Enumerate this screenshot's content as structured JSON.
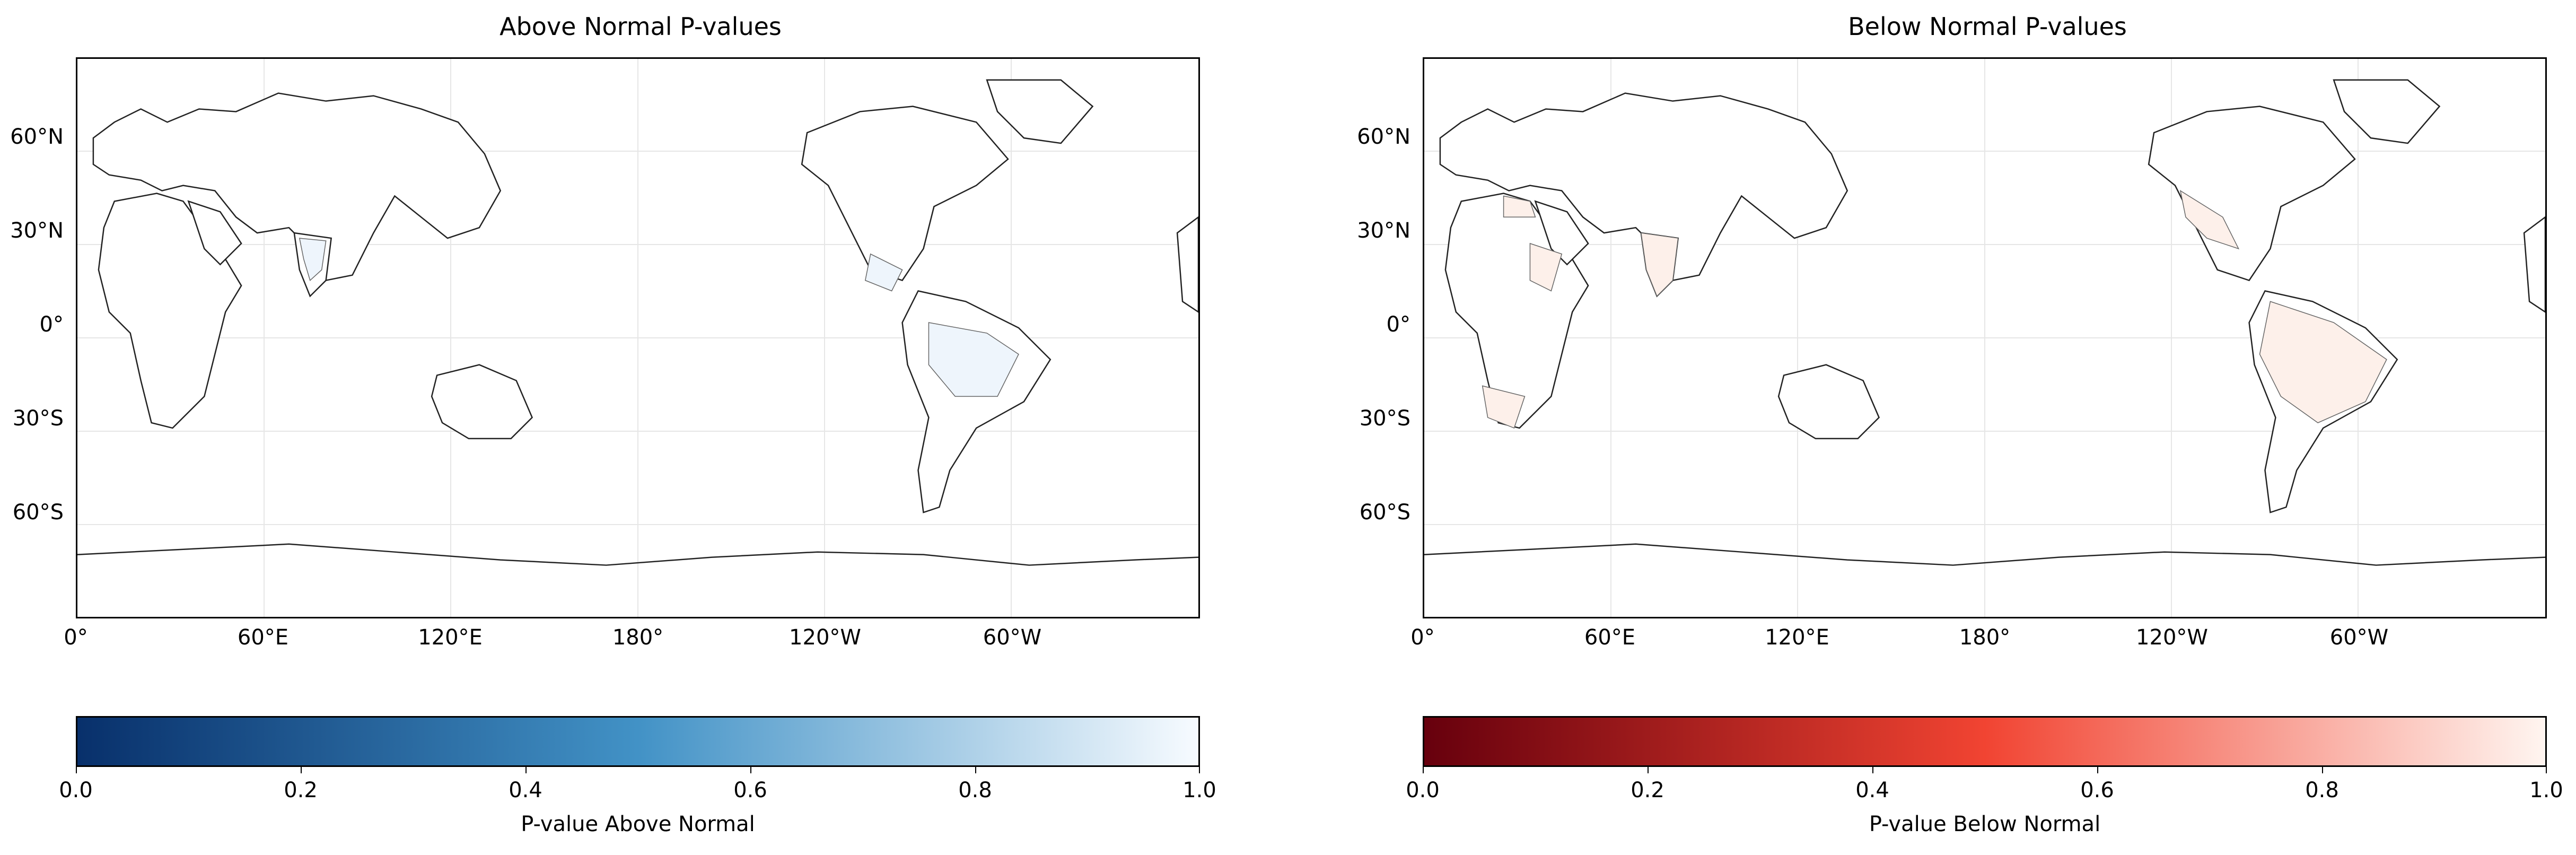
{
  "panels": [
    {
      "title": "Above Normal P-values",
      "colorbar_label": "P-value Above Normal",
      "cmap_start": "#08306b",
      "cmap_mid": "#4292c6",
      "cmap_end": "#f7fbff",
      "highlight": "#eef5fc",
      "lat_ticks": [
        "60°N",
        "30°N",
        "0°",
        "30°S",
        "60°S"
      ],
      "lon_ticks": [
        "0°",
        "60°E",
        "120°E",
        "180°",
        "120°W",
        "60°W"
      ],
      "cbar_ticks": [
        "0.0",
        "0.2",
        "0.4",
        "0.6",
        "0.8",
        "1.0"
      ]
    },
    {
      "title": "Below Normal P-values",
      "colorbar_label": "P-value Below Normal",
      "cmap_start": "#67000d",
      "cmap_mid": "#f14432",
      "cmap_end": "#fff5f0",
      "highlight": "#fdf0ea",
      "lat_ticks": [
        "60°N",
        "30°N",
        "0°",
        "30°S",
        "60°S"
      ],
      "lon_ticks": [
        "0°",
        "60°E",
        "120°E",
        "180°",
        "120°W",
        "60°W"
      ],
      "cbar_ticks": [
        "0.0",
        "0.2",
        "0.4",
        "0.6",
        "0.8",
        "1.0"
      ]
    }
  ]
}
